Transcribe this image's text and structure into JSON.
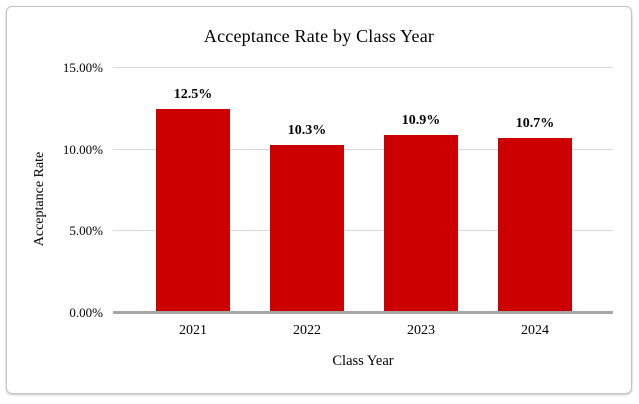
{
  "card": {
    "background": "#ffffff",
    "border_color": "#c3c3c3"
  },
  "colors": {
    "bar": "#cc0000",
    "gridline": "#d9d9d9",
    "axis_line": "#a6a6a6",
    "text": "#000000"
  },
  "chart_data": {
    "type": "bar",
    "title": "Acceptance Rate by Class Year",
    "xlabel": "Class Year",
    "ylabel": "Acceptance Rate",
    "categories": [
      "2021",
      "2022",
      "2023",
      "2024"
    ],
    "values": [
      12.5,
      10.3,
      10.9,
      10.7
    ],
    "bar_labels": [
      "12.5%",
      "10.3%",
      "10.9%",
      "10.7%"
    ],
    "ylim": [
      0,
      15
    ],
    "yticks": [
      {
        "value": 0,
        "label": "0.00%"
      },
      {
        "value": 5,
        "label": "5.00%"
      },
      {
        "value": 10,
        "label": "10.00%"
      },
      {
        "value": 15,
        "label": "15.00%"
      }
    ],
    "grid": true,
    "legend": false,
    "bar_color": "#cc0000"
  }
}
